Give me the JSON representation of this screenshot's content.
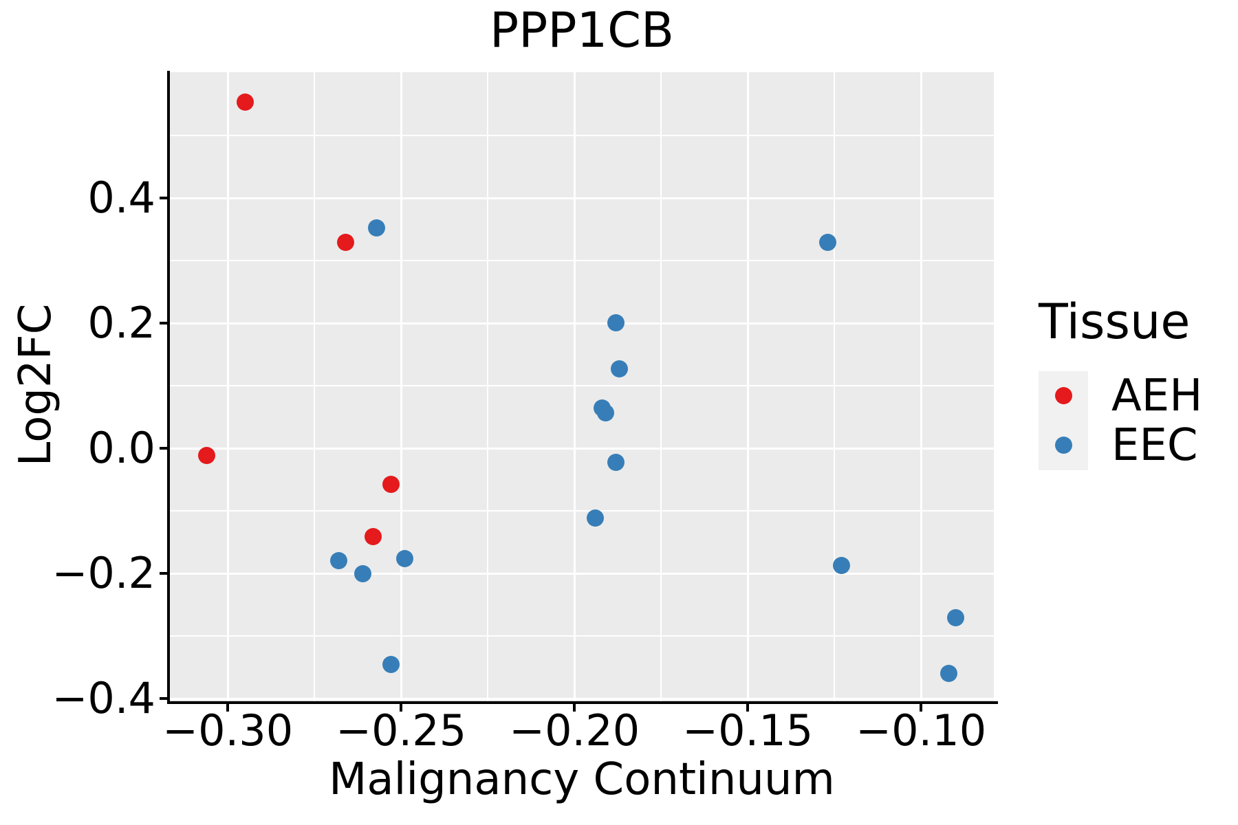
{
  "title": "PPP1CB",
  "axes": {
    "x": {
      "label": "Malignancy Continuum",
      "tick_labels": [
        "−0.30",
        "−0.25",
        "−0.20",
        "−0.15",
        "−0.10"
      ],
      "tick_values": [
        -0.3,
        -0.25,
        -0.2,
        -0.15,
        -0.1
      ],
      "minor_tick_values": [
        -0.275,
        -0.225,
        -0.175,
        -0.125
      ]
    },
    "y": {
      "label": "Log2FC",
      "tick_labels": [
        "0.4",
        "0.2",
        "0.0",
        "−0.2",
        "−0.4"
      ],
      "tick_values": [
        0.4,
        0.2,
        0.0,
        -0.2,
        -0.4
      ],
      "minor_tick_values": [
        0.5,
        0.3,
        0.1,
        -0.1,
        -0.3
      ]
    }
  },
  "legend": {
    "title": "Tissue",
    "entries": [
      {
        "label": "AEH",
        "color": "#e41a1c"
      },
      {
        "label": "EEC",
        "color": "#377eb8"
      }
    ]
  },
  "colors": {
    "panel_background": "#ebebeb",
    "gridline": "#ffffff",
    "axis": "#000000",
    "aeh": "#e41a1c",
    "eec": "#377eb8",
    "legend_key_background": "#f1f1f1"
  },
  "chart_data": {
    "type": "scatter",
    "title": "PPP1CB",
    "xlabel": "Malignancy Continuum",
    "ylabel": "Log2FC",
    "xlim": [
      -0.3167,
      -0.079
    ],
    "ylim": [
      -0.404,
      0.601
    ],
    "grid": true,
    "legend_title": "Tissue",
    "legend_position": "right",
    "series": [
      {
        "name": "AEH",
        "color": "#e41a1c",
        "points": [
          [
            -0.295,
            0.553
          ],
          [
            -0.266,
            0.329
          ],
          [
            -0.306,
            -0.011
          ],
          [
            -0.253,
            -0.057
          ],
          [
            -0.258,
            -0.141
          ]
        ]
      },
      {
        "name": "EEC",
        "color": "#377eb8",
        "points": [
          [
            -0.257,
            0.352
          ],
          [
            -0.127,
            0.329
          ],
          [
            -0.188,
            0.201
          ],
          [
            -0.187,
            0.127
          ],
          [
            -0.192,
            0.064
          ],
          [
            -0.191,
            0.057
          ],
          [
            -0.188,
            -0.022
          ],
          [
            -0.194,
            -0.111
          ],
          [
            -0.268,
            -0.179
          ],
          [
            -0.261,
            -0.2
          ],
          [
            -0.249,
            -0.176
          ],
          [
            -0.253,
            -0.345
          ],
          [
            -0.123,
            -0.187
          ],
          [
            -0.09,
            -0.27
          ],
          [
            -0.092,
            -0.36
          ]
        ]
      }
    ]
  }
}
